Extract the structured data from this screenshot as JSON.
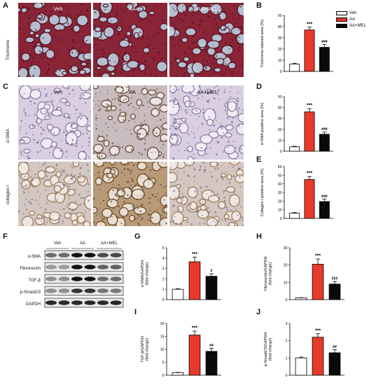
{
  "panels": {
    "A": "A",
    "B": "B",
    "C": "C",
    "D": "D",
    "E": "E",
    "F": "F",
    "G": "G",
    "H": "H",
    "I": "I",
    "J": "J"
  },
  "groups": [
    "Veh",
    "AA",
    "AA+MEL"
  ],
  "row_labels": {
    "trichrome": "Trichrome",
    "asma": "α-SMA",
    "collagen": "collagen I"
  },
  "colors": {
    "veh": "#ffffff",
    "aa": "#e8392a",
    "aamel": "#0a0a0a",
    "trichrome_bg": "#8a2437",
    "ihc_bg": "#d9cfe0"
  },
  "western_blot": {
    "group_heads": [
      "Veh",
      "AA",
      "AA+MEL"
    ],
    "bands": [
      "α-SMA",
      "Fibronectin",
      "TGF-β",
      "p-Smad2/3",
      "GAPDH"
    ],
    "intensities": [
      [
        0.55,
        0.55,
        0.95,
        0.95,
        0.7,
        0.7
      ],
      [
        0.35,
        0.35,
        0.95,
        0.95,
        0.6,
        0.6
      ],
      [
        0.4,
        0.4,
        0.95,
        0.95,
        0.55,
        0.55
      ],
      [
        0.4,
        0.4,
        0.8,
        0.8,
        0.5,
        0.5
      ],
      [
        0.85,
        0.85,
        0.85,
        0.85,
        0.85,
        0.85
      ]
    ]
  },
  "legend": [
    "Veh",
    "AA",
    "AA+MEL"
  ],
  "chart_data": [
    {
      "panel": "B",
      "type": "bar",
      "categories": [
        "Veh",
        "AA",
        "AA+MEL"
      ],
      "values": [
        6.5,
        37,
        21.5
      ],
      "errors": [
        0.6,
        2.5,
        2.5
      ],
      "ylabel": "Trichrome-stained area (%)",
      "ylim": [
        0,
        50
      ],
      "yticks": [
        0,
        10,
        20,
        30,
        40,
        50
      ],
      "annotations": [
        "",
        "***",
        "###"
      ]
    },
    {
      "panel": "D",
      "type": "bar",
      "categories": [
        "Veh",
        "AA",
        "AA+MEL"
      ],
      "values": [
        4,
        36,
        15.5
      ],
      "errors": [
        0.5,
        3,
        2
      ],
      "ylabel": "α-SMA positive area (%)",
      "ylim": [
        0,
        50
      ],
      "yticks": [
        0,
        10,
        20,
        30,
        40,
        50
      ],
      "annotations": [
        "",
        "***",
        "###"
      ]
    },
    {
      "panel": "E",
      "type": "bar",
      "categories": [
        "Veh",
        "AA",
        "AA+MEL"
      ],
      "values": [
        6,
        45,
        19.5
      ],
      "errors": [
        0.8,
        3.5,
        3
      ],
      "ylabel": "Collagen I positive area (%)",
      "ylim": [
        0,
        60
      ],
      "yticks": [
        0,
        10,
        20,
        30,
        40,
        50,
        60
      ],
      "annotations": [
        "",
        "***",
        "###"
      ]
    },
    {
      "panel": "G",
      "type": "bar",
      "categories": [
        "Veh",
        "AA",
        "AA+MEL"
      ],
      "values": [
        1,
        3.65,
        2.25
      ],
      "errors": [
        0.05,
        0.45,
        0.25
      ],
      "ylabel": "α-SMA/GAPDH\n(fold change)",
      "ylim": [
        0,
        5
      ],
      "yticks": [
        0,
        1,
        2,
        3,
        4,
        5
      ],
      "annotations": [
        "",
        "***",
        "#"
      ]
    },
    {
      "panel": "H",
      "type": "bar",
      "categories": [
        "Veh",
        "AA",
        "AA+MEL"
      ],
      "values": [
        1,
        20.5,
        9
      ],
      "errors": [
        0.1,
        3,
        1.5
      ],
      "ylabel": "Fibronectin/GAPDH\n(fold change)",
      "ylim": [
        0,
        30
      ],
      "yticks": [
        0,
        10,
        20,
        30
      ],
      "annotations": [
        "",
        "***",
        "###"
      ]
    },
    {
      "panel": "I",
      "type": "bar",
      "categories": [
        "Veh",
        "AA",
        "AA+MEL"
      ],
      "values": [
        1,
        15.5,
        9.2
      ],
      "errors": [
        0.1,
        1.5,
        1.2
      ],
      "ylabel": "TGF-β/GAPDH\n(fold change)",
      "ylim": [
        0,
        20
      ],
      "yticks": [
        0,
        5,
        10,
        15,
        20
      ],
      "annotations": [
        "",
        "***",
        "##"
      ]
    },
    {
      "panel": "J",
      "type": "bar",
      "categories": [
        "Veh",
        "AA",
        "AA+MEL"
      ],
      "values": [
        1,
        2.2,
        1.3
      ],
      "errors": [
        0.05,
        0.2,
        0.18
      ],
      "ylabel": "p-Smad2/3/GAPDH\n(fold change)",
      "ylim": [
        0,
        3
      ],
      "yticks": [
        0,
        1,
        2,
        3
      ],
      "annotations": [
        "",
        "***",
        "##"
      ]
    }
  ]
}
